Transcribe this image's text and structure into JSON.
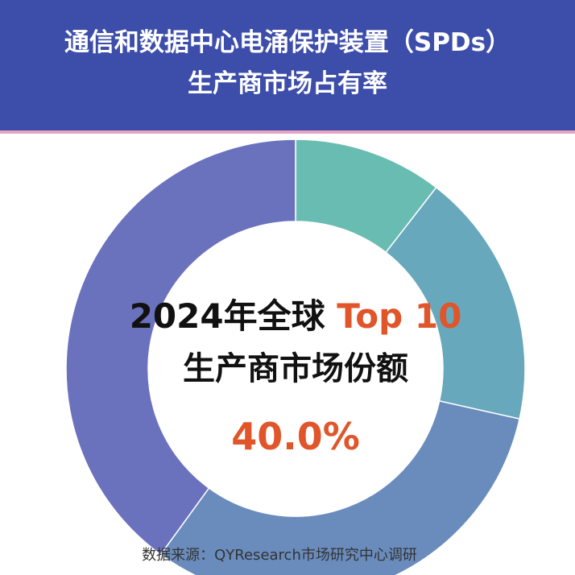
{
  "header": {
    "title_line1": "通信和数据中心电涌保护装置（SPDs）",
    "title_line2": "生产商市场占有率",
    "background_color": "#3d4eaa",
    "border_color": "#e6a4c0"
  },
  "center": {
    "line1_prefix": "2024年全球",
    "line1_accent": "Top 10",
    "line2": "生产商市场份额",
    "value": "40.0%",
    "accent_color": "#e0552a"
  },
  "source": "数据来源：QYResearch市场研究中心调研",
  "chart_data": {
    "type": "pie",
    "variant": "donut",
    "title": "通信和数据中心电涌保护装置（SPDs）生产商市场占有率",
    "slices": [
      {
        "value": 10.5,
        "color": "#69bcb2"
      },
      {
        "value": 18.0,
        "color": "#68a8bc"
      },
      {
        "value": 31.5,
        "color": "#6a8cbd"
      },
      {
        "value": 40.0,
        "color": "#6b72bd"
      }
    ],
    "highlight_value": "40.0%"
  }
}
